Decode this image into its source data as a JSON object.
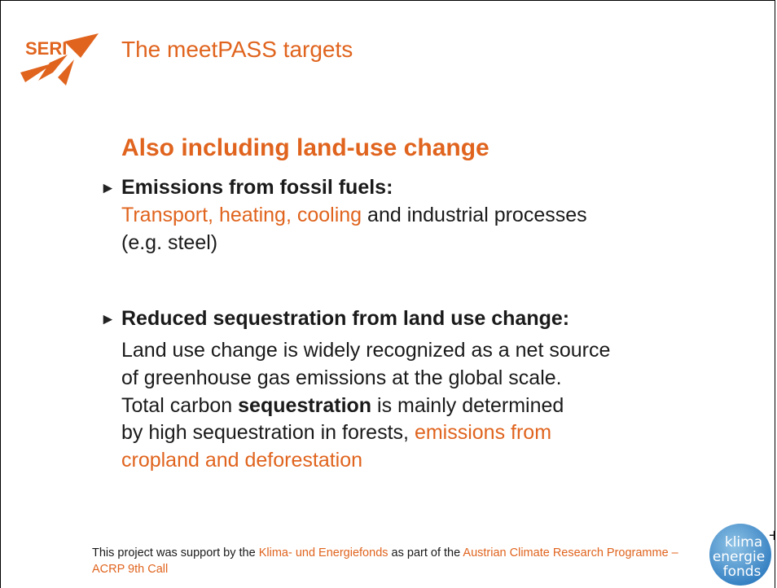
{
  "header": {
    "logo": "SERI",
    "title": "The meetPASS targets"
  },
  "subtitle": "Also including land-use change",
  "bullets": [
    {
      "heading": "Emissions from fossil fuels:",
      "lines": [
        [
          "Transport, heating, cooling",
          " and industrial processes"
        ],
        [
          "(e.g. steel)"
        ]
      ]
    },
    {
      "heading": "Reduced sequestration from land use change:",
      "lines": [
        [
          "Land use change is widely recognized as a net source"
        ],
        [
          "of greenhouse gas emissions at the global scale."
        ],
        [
          "Total carbon ",
          "sequestration",
          " is mainly determined"
        ],
        [
          "by high sequestration in forests, ",
          "emissions from"
        ],
        [
          "cropland and deforestation"
        ]
      ]
    }
  ],
  "footer": {
    "text": [
      "This project was support by the ",
      "Klima- und Energiefonds",
      " as part of the ",
      "Austrian Climate Research Programme – ACRP 9th Call"
    ]
  },
  "badge": {
    "lines": [
      "klima",
      "energie",
      "fonds"
    ],
    "plus": "+"
  }
}
